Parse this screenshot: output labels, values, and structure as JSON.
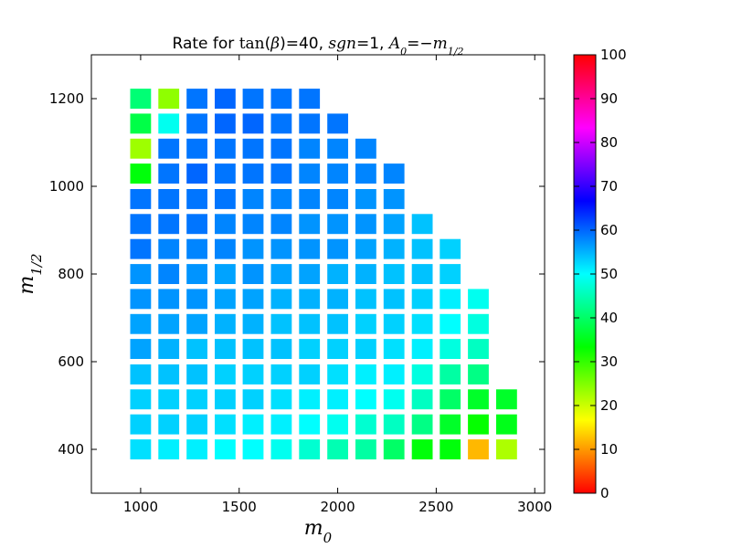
{
  "chart_data": {
    "type": "heatmap",
    "title_prefix": "Rate for ",
    "title_parts": [
      "tan",
      "(",
      "β",
      ")",
      "=40, ",
      "sgn",
      "=1, ",
      "A",
      "0",
      "=−",
      "m",
      "1/2"
    ],
    "xlabel_base": "m",
    "xlabel_sub": "0",
    "ylabel_base": "m",
    "ylabel_sub": "1/2",
    "xlim": [
      750,
      3050
    ],
    "ylim": [
      300,
      1300
    ],
    "xticks": [
      1000,
      1500,
      2000,
      2500,
      3000
    ],
    "yticks": [
      400,
      600,
      800,
      1000,
      1200
    ],
    "colorbar": {
      "min": 0,
      "max": 100,
      "ticks": [
        0,
        10,
        20,
        30,
        40,
        50,
        60,
        70,
        80,
        90,
        100
      ],
      "colormap": "hsv"
    },
    "x_values": [
      1000,
      1143,
      1286,
      1429,
      1571,
      1714,
      1857,
      2000,
      2143,
      2286,
      2429,
      2571,
      2714,
      2857
    ],
    "y_values": [
      400,
      457,
      514,
      571,
      629,
      686,
      743,
      800,
      857,
      914,
      971,
      1029,
      1086,
      1143,
      1200
    ],
    "rows": [
      [
        52,
        51,
        51,
        50,
        50,
        49,
        47,
        45,
        44,
        40,
        34,
        34,
        12,
        22
      ],
      [
        53,
        53,
        53,
        52,
        51,
        51,
        50,
        49,
        47,
        46,
        42,
        36,
        33,
        35
      ],
      [
        53,
        53,
        53,
        53,
        53,
        52,
        51,
        51,
        50,
        49,
        46,
        40,
        36,
        36
      ],
      [
        54,
        54,
        54,
        53,
        53,
        53,
        53,
        52,
        51,
        51,
        48,
        44,
        42,
        null
      ],
      [
        56,
        55,
        54,
        54,
        54,
        54,
        53,
        53,
        53,
        52,
        51,
        48,
        46,
        null
      ],
      [
        56,
        56,
        56,
        55,
        55,
        54,
        54,
        54,
        53,
        53,
        52,
        50,
        48,
        null
      ],
      [
        57,
        57,
        57,
        56,
        56,
        55,
        55,
        55,
        54,
        54,
        53,
        51,
        49,
        null
      ],
      [
        57,
        58,
        57,
        56,
        57,
        56,
        56,
        55,
        55,
        54,
        54,
        53,
        null,
        null
      ],
      [
        59,
        58,
        58,
        58,
        57,
        57,
        57,
        57,
        56,
        55,
        54,
        53,
        null,
        null
      ],
      [
        59,
        59,
        59,
        58,
        58,
        58,
        57,
        57,
        57,
        56,
        54,
        null,
        null,
        null
      ],
      [
        59,
        59,
        59,
        59,
        58,
        58,
        58,
        58,
        57,
        57,
        null,
        null,
        null,
        null
      ],
      [
        34,
        59,
        60,
        59,
        59,
        59,
        58,
        58,
        58,
        58,
        null,
        null,
        null,
        null
      ],
      [
        23,
        59,
        59,
        59,
        59,
        59,
        58,
        58,
        58,
        null,
        null,
        null,
        null,
        null
      ],
      [
        38,
        49,
        59,
        60,
        60,
        59,
        59,
        59,
        null,
        null,
        null,
        null,
        null,
        null
      ],
      [
        41,
        24,
        59,
        60,
        59,
        59,
        59,
        null,
        null,
        null,
        null,
        null,
        null,
        null
      ]
    ]
  }
}
